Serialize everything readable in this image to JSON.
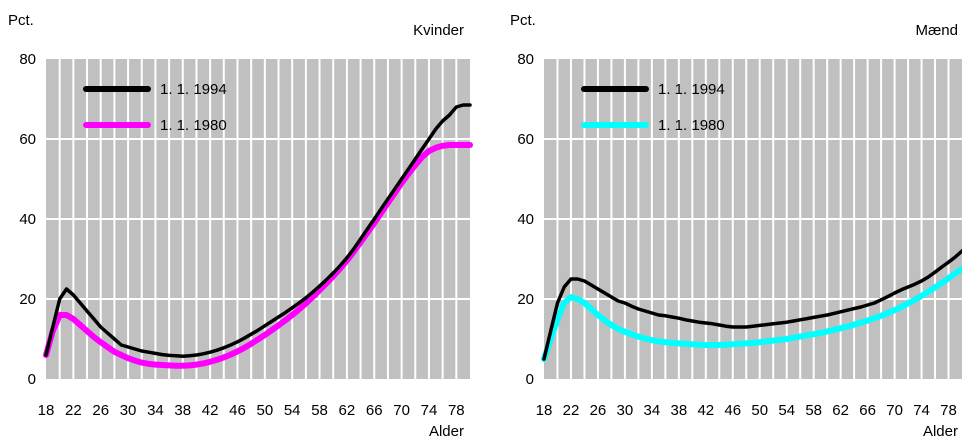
{
  "chart_data": [
    {
      "type": "line",
      "title": "Kvinder",
      "ylabel": "Pct.",
      "xlabel": "Alder",
      "ylim": [
        0,
        80
      ],
      "yticks": [
        0,
        20,
        40,
        60,
        80
      ],
      "xlim": [
        18,
        80
      ],
      "xticks": [
        18,
        22,
        26,
        30,
        34,
        38,
        42,
        46,
        50,
        54,
        58,
        62,
        66,
        70,
        74,
        78
      ],
      "grid": true,
      "legend_position": "top-left",
      "background": "#c0c0c0",
      "series": [
        {
          "name": "1. 1. 1994",
          "color": "#000000",
          "x": [
            18,
            19,
            20,
            21,
            22,
            23,
            24,
            25,
            26,
            27,
            28,
            29,
            30,
            31,
            32,
            33,
            34,
            35,
            36,
            37,
            38,
            39,
            40,
            41,
            42,
            43,
            44,
            45,
            46,
            47,
            48,
            49,
            50,
            51,
            52,
            53,
            54,
            55,
            56,
            57,
            58,
            59,
            60,
            61,
            62,
            63,
            64,
            65,
            66,
            67,
            68,
            69,
            70,
            71,
            72,
            73,
            74,
            75,
            76,
            77,
            78,
            79,
            80
          ],
          "y": [
            6,
            13,
            20,
            22.5,
            21,
            19,
            17,
            15,
            13,
            11.5,
            10,
            8.5,
            8,
            7.5,
            7,
            6.7,
            6.4,
            6.1,
            5.9,
            5.8,
            5.7,
            5.8,
            6,
            6.3,
            6.7,
            7.2,
            7.8,
            8.5,
            9.3,
            10.2,
            11.2,
            12.2,
            13.3,
            14.4,
            15.5,
            16.6,
            17.8,
            19,
            20.3,
            21.7,
            23.2,
            24.8,
            26.5,
            28.3,
            30.3,
            32.5,
            35,
            37.5,
            40,
            42.5,
            45,
            47.5,
            50,
            52.5,
            55,
            57.5,
            60,
            62.5,
            64.5,
            66,
            68,
            68.5,
            68.5
          ]
        },
        {
          "name": "1. 1. 1980",
          "color": "#ff00ff",
          "x": [
            18,
            19,
            20,
            21,
            22,
            23,
            24,
            25,
            26,
            27,
            28,
            29,
            30,
            31,
            32,
            33,
            34,
            35,
            36,
            37,
            38,
            39,
            40,
            41,
            42,
            43,
            44,
            45,
            46,
            47,
            48,
            49,
            50,
            51,
            52,
            53,
            54,
            55,
            56,
            57,
            58,
            59,
            60,
            61,
            62,
            63,
            64,
            65,
            66,
            67,
            68,
            69,
            70,
            71,
            72,
            73,
            74,
            75,
            76,
            77,
            78,
            79,
            80
          ],
          "y": [
            6,
            12,
            16,
            16,
            15,
            13.5,
            12,
            10.5,
            9.2,
            8,
            6.8,
            6,
            5.2,
            4.6,
            4.1,
            3.8,
            3.6,
            3.5,
            3.4,
            3.3,
            3.3,
            3.4,
            3.6,
            3.9,
            4.3,
            4.8,
            5.4,
            6.1,
            6.9,
            7.8,
            8.8,
            9.9,
            11,
            12.2,
            13.4,
            14.7,
            16,
            17.4,
            18.9,
            20.5,
            22.2,
            23.9,
            25.7,
            27.6,
            29.6,
            31.8,
            34.2,
            36.6,
            39,
            41.5,
            44,
            46.5,
            49,
            51.3,
            53.5,
            55.5,
            57,
            57.8,
            58.3,
            58.5,
            58.5,
            58.5,
            58.5
          ]
        }
      ]
    },
    {
      "type": "line",
      "title": "Mænd",
      "ylabel": "Pct.",
      "xlabel": "Alder",
      "ylim": [
        0,
        80
      ],
      "yticks": [
        0,
        20,
        40,
        60,
        80
      ],
      "xlim": [
        18,
        80
      ],
      "xticks": [
        18,
        22,
        26,
        30,
        34,
        38,
        42,
        46,
        50,
        54,
        58,
        62,
        66,
        70,
        74,
        78
      ],
      "grid": true,
      "legend_position": "top-left",
      "background": "#c0c0c0",
      "series": [
        {
          "name": "1. 1. 1994",
          "color": "#000000",
          "x": [
            18,
            19,
            20,
            21,
            22,
            23,
            24,
            25,
            26,
            27,
            28,
            29,
            30,
            31,
            32,
            33,
            34,
            35,
            36,
            37,
            38,
            39,
            40,
            41,
            42,
            43,
            44,
            45,
            46,
            47,
            48,
            49,
            50,
            51,
            52,
            53,
            54,
            55,
            56,
            57,
            58,
            59,
            60,
            61,
            62,
            63,
            64,
            65,
            66,
            67,
            68,
            69,
            70,
            71,
            72,
            73,
            74,
            75,
            76,
            77,
            78,
            79,
            80
          ],
          "y": [
            5,
            12,
            19,
            23,
            25,
            25,
            24.5,
            23.5,
            22.5,
            21.5,
            20.5,
            19.5,
            19,
            18.2,
            17.5,
            17,
            16.5,
            16,
            15.8,
            15.5,
            15.2,
            14.8,
            14.5,
            14.2,
            14,
            13.8,
            13.5,
            13.2,
            13,
            13,
            13,
            13.2,
            13.4,
            13.6,
            13.8,
            14,
            14.2,
            14.5,
            14.8,
            15.1,
            15.4,
            15.7,
            16,
            16.4,
            16.8,
            17.2,
            17.6,
            18,
            18.5,
            19,
            19.8,
            20.6,
            21.5,
            22.3,
            23,
            23.7,
            24.5,
            25.5,
            26.7,
            28,
            29.2,
            30.5,
            32
          ]
        },
        {
          "name": "1. 1. 1980",
          "color": "#00ffff",
          "x": [
            18,
            19,
            20,
            21,
            22,
            23,
            24,
            25,
            26,
            27,
            28,
            29,
            30,
            31,
            32,
            33,
            34,
            35,
            36,
            37,
            38,
            39,
            40,
            41,
            42,
            43,
            44,
            45,
            46,
            47,
            48,
            49,
            50,
            51,
            52,
            53,
            54,
            55,
            56,
            57,
            58,
            59,
            60,
            61,
            62,
            63,
            64,
            65,
            66,
            67,
            68,
            69,
            70,
            71,
            72,
            73,
            74,
            75,
            76,
            77,
            78,
            79,
            80
          ],
          "y": [
            5,
            10,
            15,
            19,
            20.5,
            20,
            19,
            17.5,
            16,
            14.7,
            13.5,
            12.5,
            11.8,
            11.2,
            10.6,
            10.1,
            9.7,
            9.4,
            9.2,
            9,
            8.9,
            8.8,
            8.7,
            8.6,
            8.5,
            8.5,
            8.5,
            8.6,
            8.7,
            8.8,
            8.9,
            9,
            9.2,
            9.4,
            9.6,
            9.8,
            10,
            10.3,
            10.6,
            10.9,
            11.2,
            11.5,
            11.9,
            12.3,
            12.7,
            13.1,
            13.6,
            14.1,
            14.6,
            15.2,
            15.8,
            16.5,
            17.2,
            18,
            18.9,
            19.8,
            20.8,
            21.8,
            22.9,
            24,
            25.2,
            26.4,
            27.5
          ]
        }
      ]
    }
  ]
}
